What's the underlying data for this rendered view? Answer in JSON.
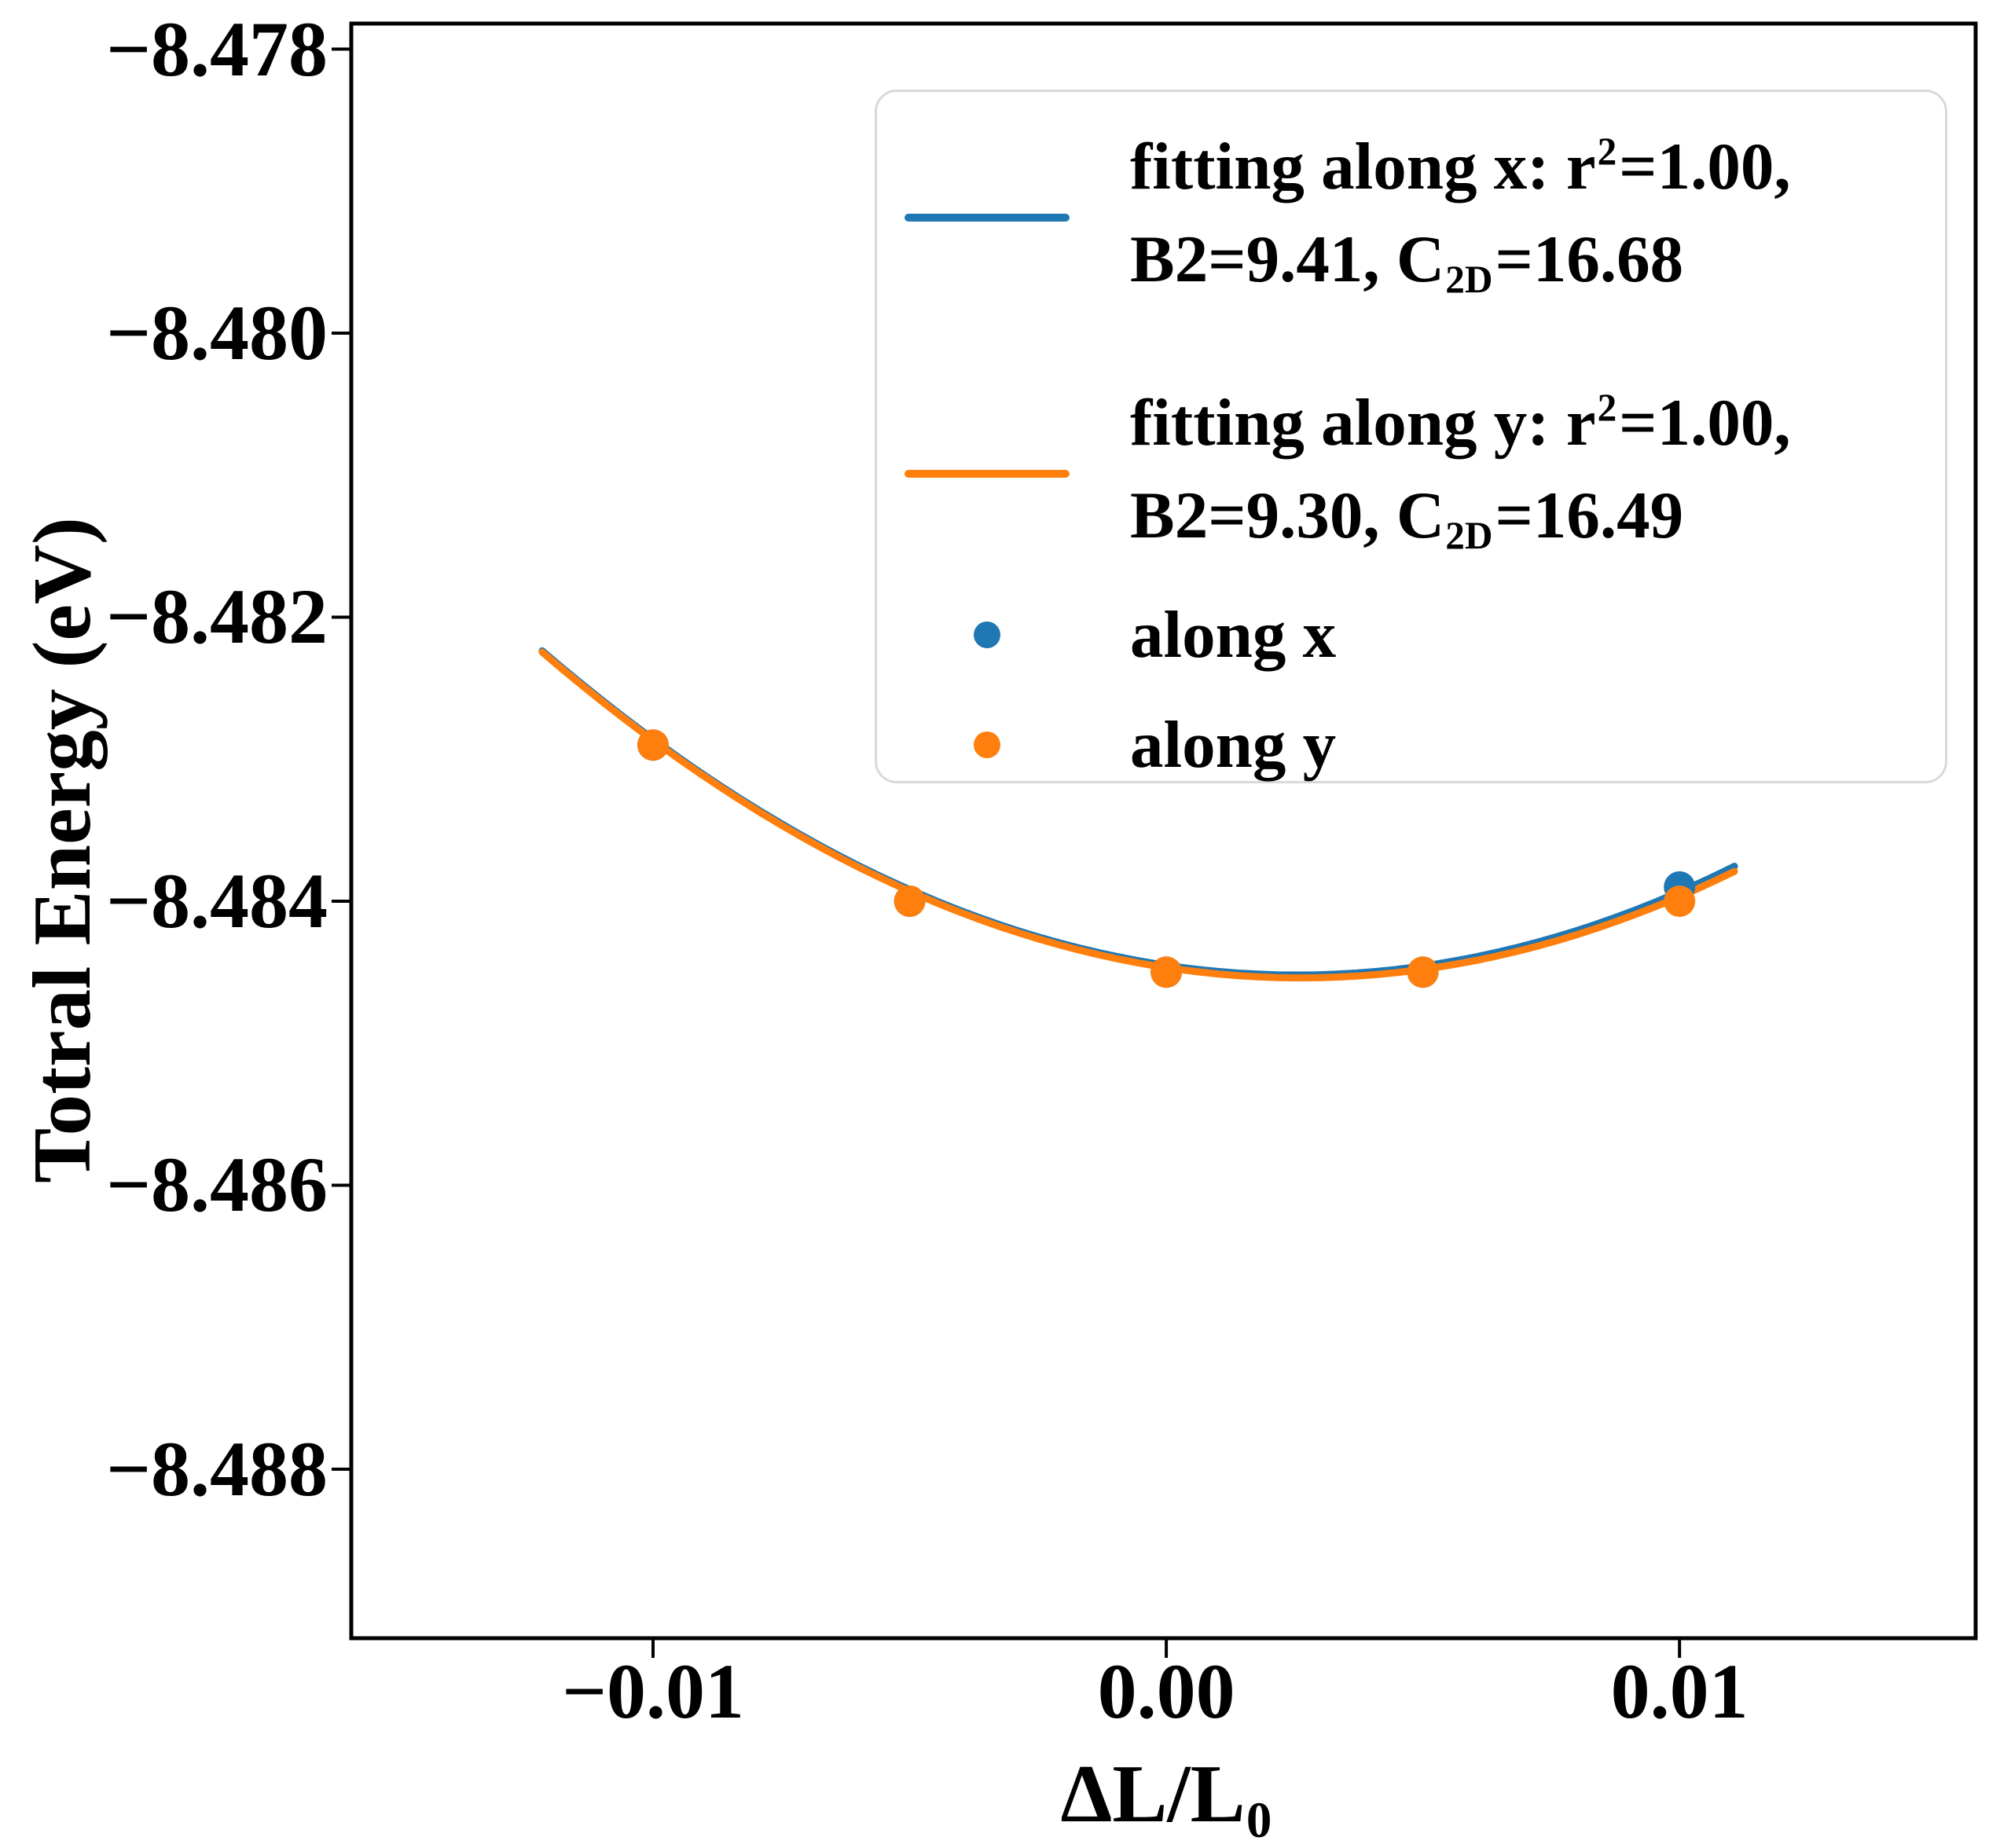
{
  "chart_data": {
    "type": "scatter",
    "title": "",
    "ylabel": "Totral Energy (eV)",
    "xlabel": {
      "main": "ΔL/L",
      "sub": "0"
    },
    "xlim": [
      -0.01588,
      0.01577
    ],
    "ylim": [
      -8.48919,
      -8.47782
    ],
    "grid": false,
    "xticks": {
      "values": [
        -0.01,
        0.0,
        0.01
      ],
      "labels": [
        "−0.01",
        "0.00",
        "0.01"
      ]
    },
    "yticks": {
      "values": [
        -8.478,
        -8.48,
        -8.482,
        -8.484,
        -8.486,
        -8.488
      ],
      "labels": [
        "−8.478",
        "−8.480",
        "−8.482",
        "−8.484",
        "−8.486",
        "−8.488"
      ]
    },
    "series": [
      {
        "name": "along x",
        "kind": "scatter",
        "color": "#1f77b4",
        "x": [
          -0.01,
          -0.005,
          0.0,
          0.005,
          0.01
        ],
        "y": [
          -8.4829,
          -8.484,
          -8.4845,
          -8.4845,
          -8.4839
        ]
      },
      {
        "name": "along y",
        "kind": "scatter",
        "color": "#ff7f0e",
        "x": [
          -0.01,
          -0.005,
          0.0,
          0.005,
          0.01
        ],
        "y": [
          -8.4829,
          -8.484,
          -8.4845,
          -8.4845,
          -8.484
        ]
      },
      {
        "name": "fitting along x: r2=1.00, B2=9.41, C2D=16.68",
        "kind": "fit-parabola",
        "color": "#1f77b4",
        "fit": {
          "a": 10.55,
          "x0": 0.00255,
          "c": -8.48452
        },
        "x_range": [
          -0.01216,
          0.01107
        ],
        "r_squared": 1.0,
        "B2": 9.41,
        "C2D": 16.68
      },
      {
        "name": "fitting along y: r2=1.00, B2=9.30, C2D=16.49",
        "kind": "fit-parabola",
        "color": "#ff7f0e",
        "fit": {
          "a": 10.5,
          "x0": 0.00262,
          "c": -8.48454
        },
        "x_range": [
          -0.01216,
          0.01107
        ],
        "r_squared": 1.0,
        "B2": 9.3,
        "C2D": 16.49
      }
    ],
    "legend": {
      "position": "upper right",
      "entries": [
        {
          "sample": "line",
          "color": "#1f77b4",
          "l1_pre": "fitting along x: r",
          "l1_sup": "2",
          "l1_post": "=1.00,",
          "l2_pre": "B2=9.41, C",
          "l2_sub": "2D",
          "l2_post": "=16.68"
        },
        {
          "sample": "line",
          "color": "#ff7f0e",
          "l1_pre": "fitting along y: r",
          "l1_sup": "2",
          "l1_post": "=1.00,",
          "l2_pre": "B2=9.30, C",
          "l2_sub": "2D",
          "l2_post": "=16.49"
        },
        {
          "sample": "dot",
          "color": "#1f77b4",
          "label": "along x"
        },
        {
          "sample": "dot",
          "color": "#ff7f0e",
          "label": "along y"
        }
      ]
    },
    "axis_color": "#000000"
  }
}
